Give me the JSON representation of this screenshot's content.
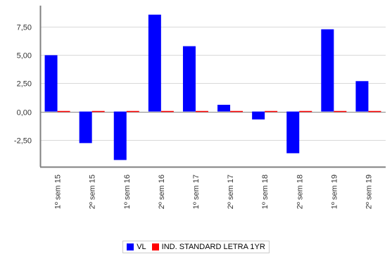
{
  "chart_data": {
    "type": "bar",
    "categories": [
      "1º sem 15",
      "2º sem 15",
      "1º sem 16",
      "2º sem 16",
      "1º sem 17",
      "2º sem 17",
      "1º sem 18",
      "2º sem 18",
      "1º sem 19",
      "2º sem 19"
    ],
    "series": [
      {
        "name": "VL",
        "color": "#0000ff",
        "values": [
          5.0,
          -2.8,
          -4.3,
          8.6,
          5.8,
          0.6,
          -0.7,
          -3.7,
          7.3,
          2.7
        ]
      },
      {
        "name": "IND. STANDARD LETRA 1YR",
        "color": "#ff0000",
        "values": [
          0.05,
          0.05,
          0.05,
          0.05,
          0.05,
          0.05,
          0.05,
          0.05,
          0.05,
          0.05
        ]
      }
    ],
    "yticks": [
      "7,50",
      "5,00",
      "2,50",
      "0,00",
      "-2,50"
    ],
    "ytick_values": [
      7.5,
      5.0,
      2.5,
      0.0,
      -2.5
    ],
    "ylim": [
      -4.9,
      9.4
    ],
    "grid": true,
    "legend_position": "bottom-center",
    "title": "",
    "xlabel": "",
    "ylabel": ""
  }
}
